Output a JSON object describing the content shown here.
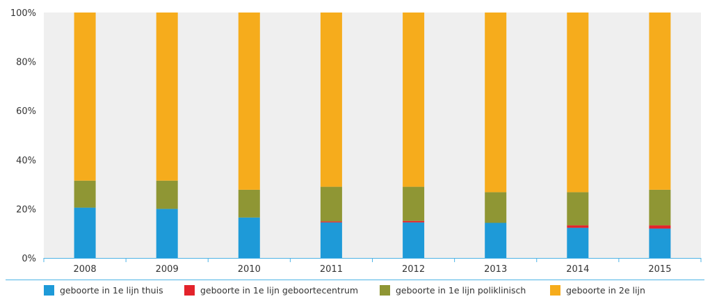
{
  "chart_data": {
    "type": "bar",
    "stacked": true,
    "percent": true,
    "categories": [
      "2008",
      "2009",
      "2010",
      "2011",
      "2012",
      "2013",
      "2014",
      "2015"
    ],
    "series": [
      {
        "name": "geboorte in 1e lijn thuis",
        "color": "#1e9ad8",
        "values": [
          20.5,
          20.0,
          16.5,
          14.5,
          14.5,
          14.3,
          12.3,
          12.0
        ]
      },
      {
        "name": "geboorte in 1e lijn geboortecentrum",
        "color": "#e3232b",
        "values": [
          0,
          0,
          0,
          0.4,
          0.6,
          0,
          1.0,
          1.3
        ]
      },
      {
        "name": "geboorte in 1e lijn poliklinisch",
        "color": "#8f9634",
        "values": [
          11.0,
          11.5,
          11.3,
          14.1,
          13.9,
          12.5,
          13.5,
          14.5
        ]
      },
      {
        "name": "geboorte in 2e lijn",
        "color": "#f6ac1c",
        "values": [
          68.5,
          68.5,
          72.2,
          71.0,
          71.0,
          73.2,
          73.2,
          72.2
        ]
      }
    ],
    "yticks": [
      "0%",
      "20%",
      "40%",
      "60%",
      "80%",
      "100%"
    ],
    "ylim": [
      0,
      100
    ],
    "grid": false,
    "legend_position": "bottom",
    "plot_background": "#efefef",
    "axis_color": "#4db3e6"
  }
}
